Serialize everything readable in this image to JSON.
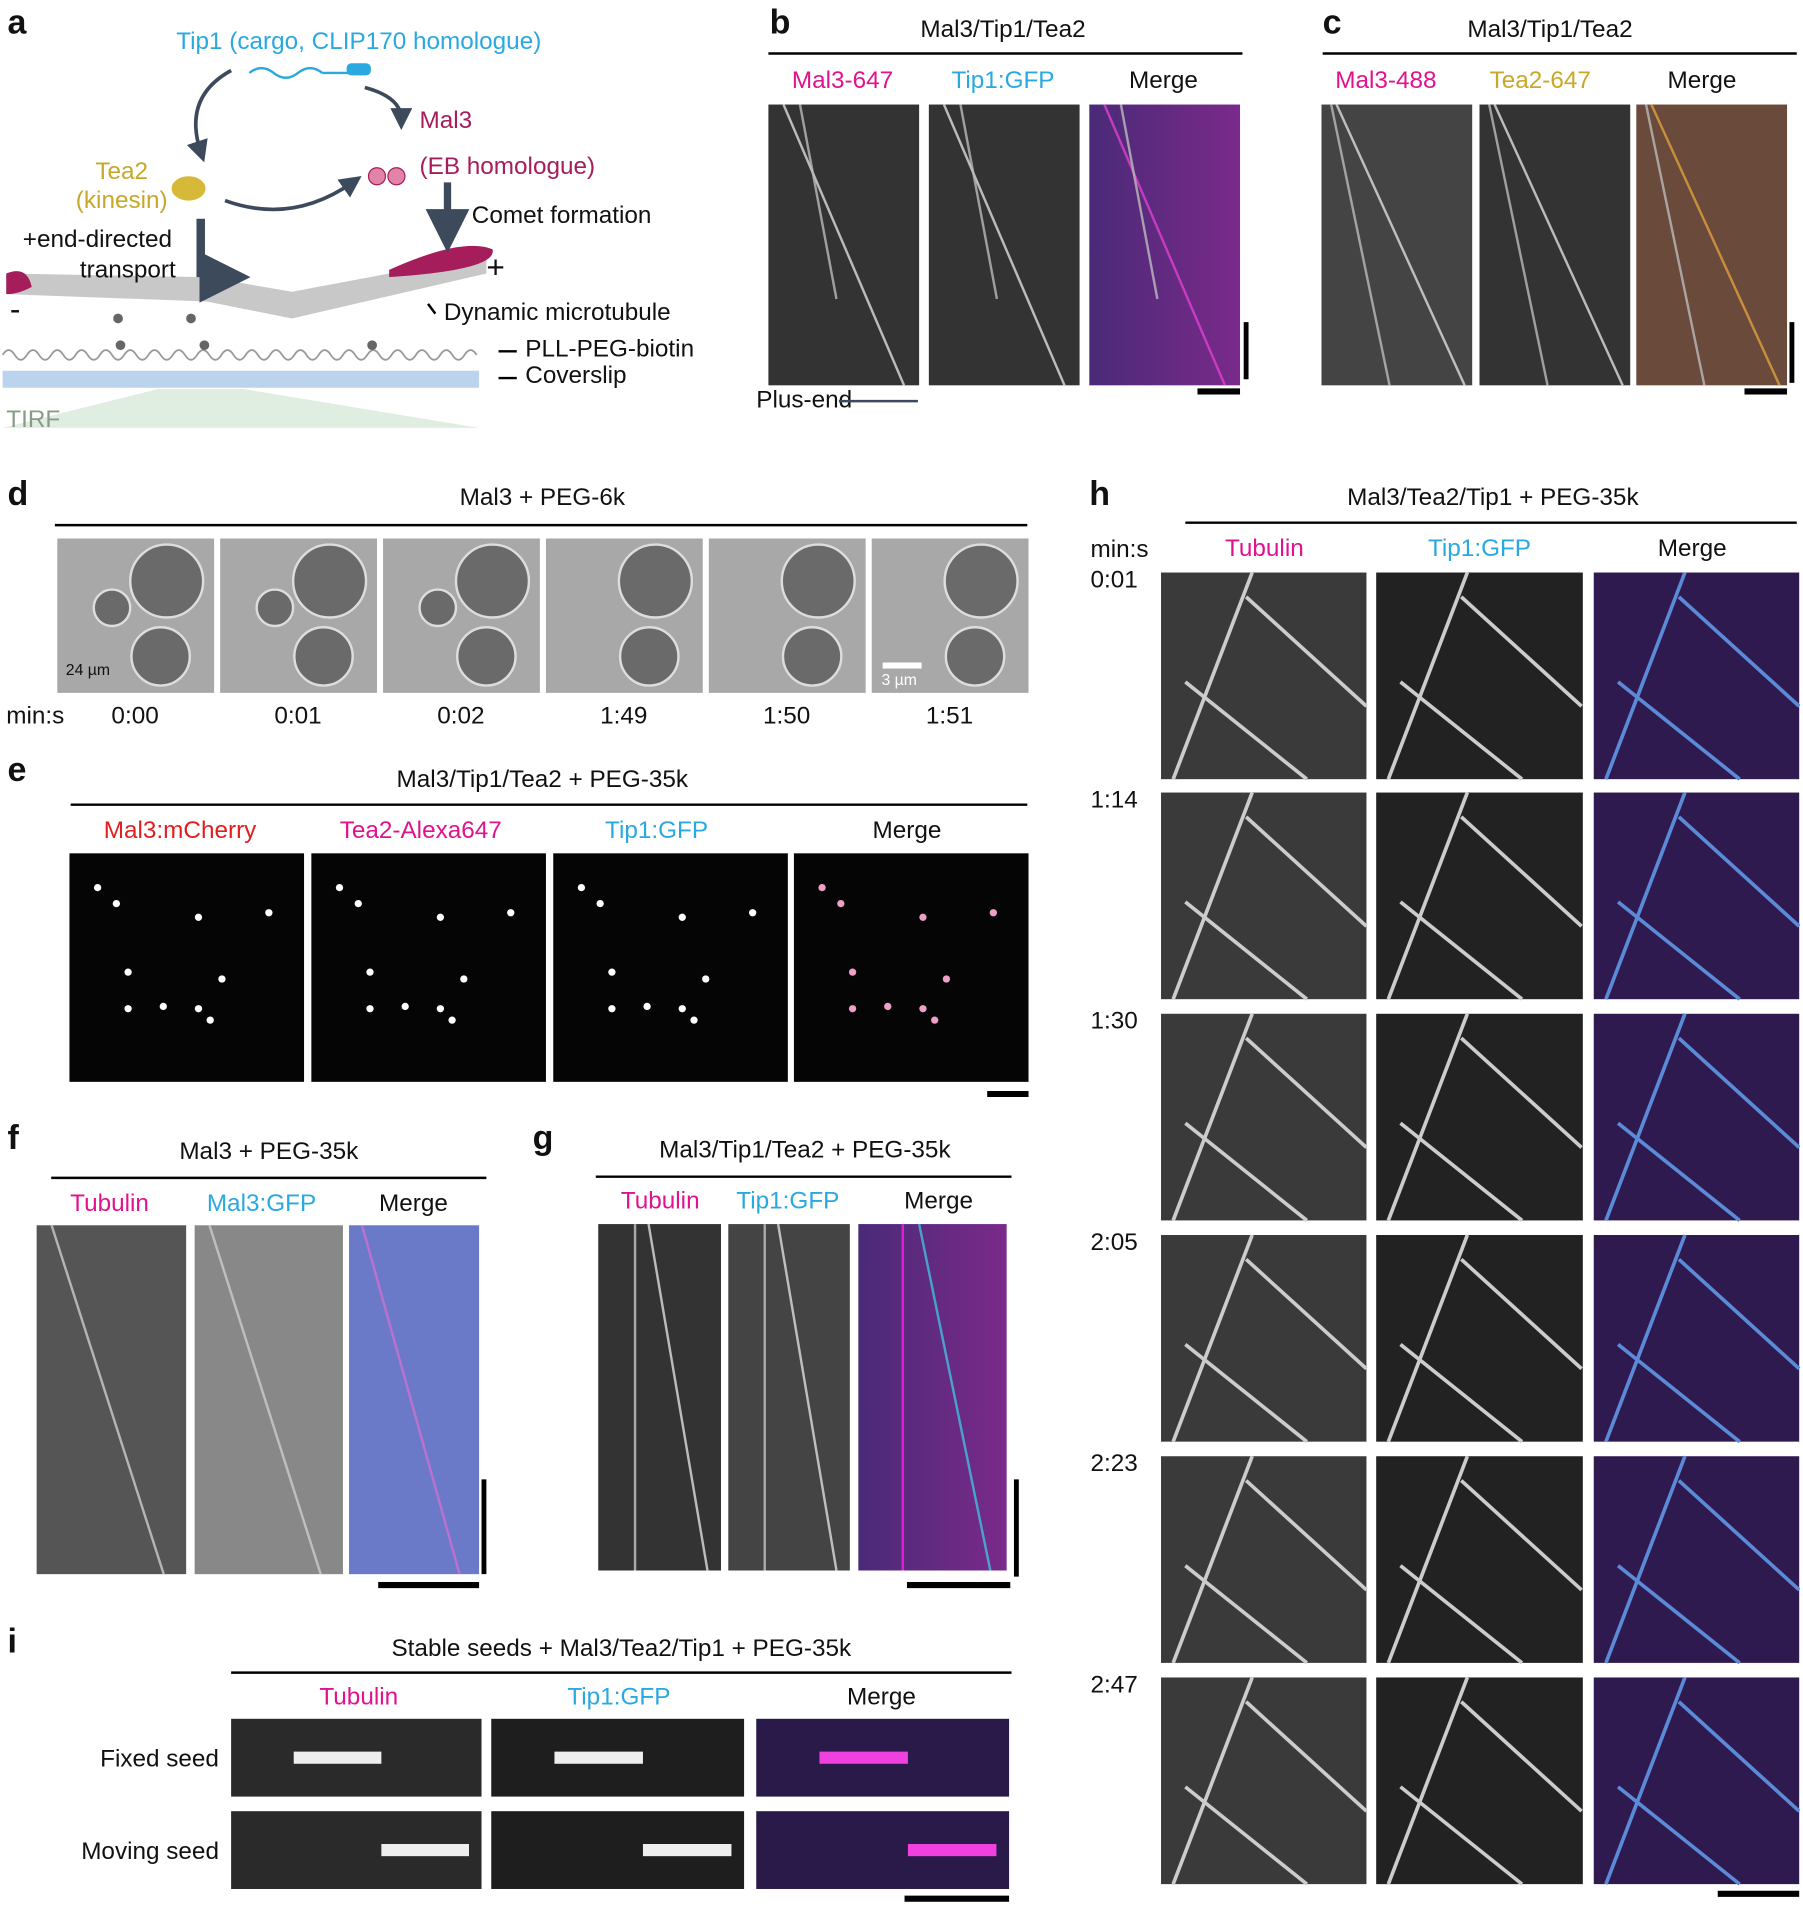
{
  "panels": {
    "a": {
      "label": "a",
      "tip1": "Tip1 (cargo, CLIP170 homologue)",
      "tea2": [
        "Tea2",
        "(kinesin)"
      ],
      "mal3": [
        "Mal3",
        "(EB homologue)"
      ],
      "transport": [
        "+end-directed",
        "transport"
      ],
      "comet": "Comet formation",
      "plus": "+",
      "minus": "-",
      "microtubule": "Dynamic microtubule",
      "pll": "PLL-PEG-biotin",
      "coverslip": "Coverslip",
      "tirf": "TIRF"
    },
    "b": {
      "label": "b",
      "title": "Mal3/Tip1/Tea2",
      "channels": [
        "Mal3-647",
        "Tip1:GFP",
        "Merge"
      ],
      "plus_end": "Plus-end"
    },
    "c": {
      "label": "c",
      "title": "Mal3/Tip1/Tea2",
      "channels": [
        "Mal3-488",
        "Tea2-647",
        "Merge"
      ]
    },
    "d": {
      "label": "d",
      "title": "Mal3 + PEG-6k",
      "time_label": "min:s",
      "times": [
        "0:00",
        "0:01",
        "0:02",
        "1:49",
        "1:50",
        "1:51"
      ],
      "scale_left": "24 µm",
      "scale_right": "3 µm"
    },
    "e": {
      "label": "e",
      "title": "Mal3/Tip1/Tea2 + PEG-35k",
      "channels": [
        "Mal3:mCherry",
        "Tea2-Alexa647",
        "Tip1:GFP",
        "Merge"
      ]
    },
    "f": {
      "label": "f",
      "title": "Mal3 + PEG-35k",
      "channels": [
        "Tubulin",
        "Mal3:GFP",
        "Merge"
      ]
    },
    "g": {
      "label": "g",
      "title": "Mal3/Tip1/Tea2 + PEG-35k",
      "channels": [
        "Tubulin",
        "Tip1:GFP",
        "Merge"
      ]
    },
    "h": {
      "label": "h",
      "title": "Mal3/Tea2/Tip1 + PEG-35k",
      "time_label": "min:s",
      "channels": [
        "Tubulin",
        "Tip1:GFP",
        "Merge"
      ],
      "times": [
        "0:01",
        "1:14",
        "1:30",
        "2:05",
        "2:23",
        "2:47"
      ]
    },
    "i": {
      "label": "i",
      "title": "Stable seeds + Mal3/Tea2/Tip1 + PEG-35k",
      "channels": [
        "Tubulin",
        "Tip1:GFP",
        "Merge"
      ],
      "rows": [
        "Fixed seed",
        "Moving seed"
      ]
    }
  }
}
